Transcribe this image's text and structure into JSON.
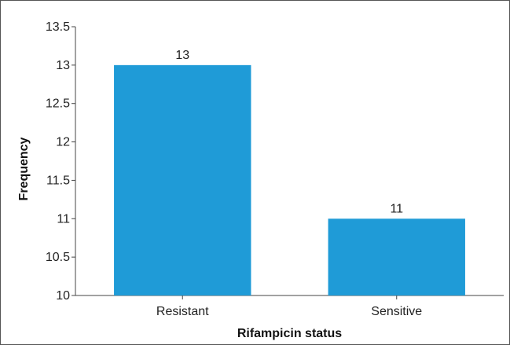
{
  "chart_data": {
    "type": "bar",
    "categories": [
      "Resistant",
      "Sensitive"
    ],
    "values": [
      13,
      11
    ],
    "data_labels": [
      "13",
      "11"
    ],
    "title": "",
    "xlabel": "Rifampicin status",
    "ylabel": "Frequency",
    "ylim": [
      10,
      13.5
    ],
    "y_ticks": [
      "10",
      "10.5",
      "11",
      "11.5",
      "12",
      "12.5",
      "13",
      "13.5"
    ],
    "bar_color": "#1f9bd7",
    "grid": false,
    "legend": "none"
  }
}
